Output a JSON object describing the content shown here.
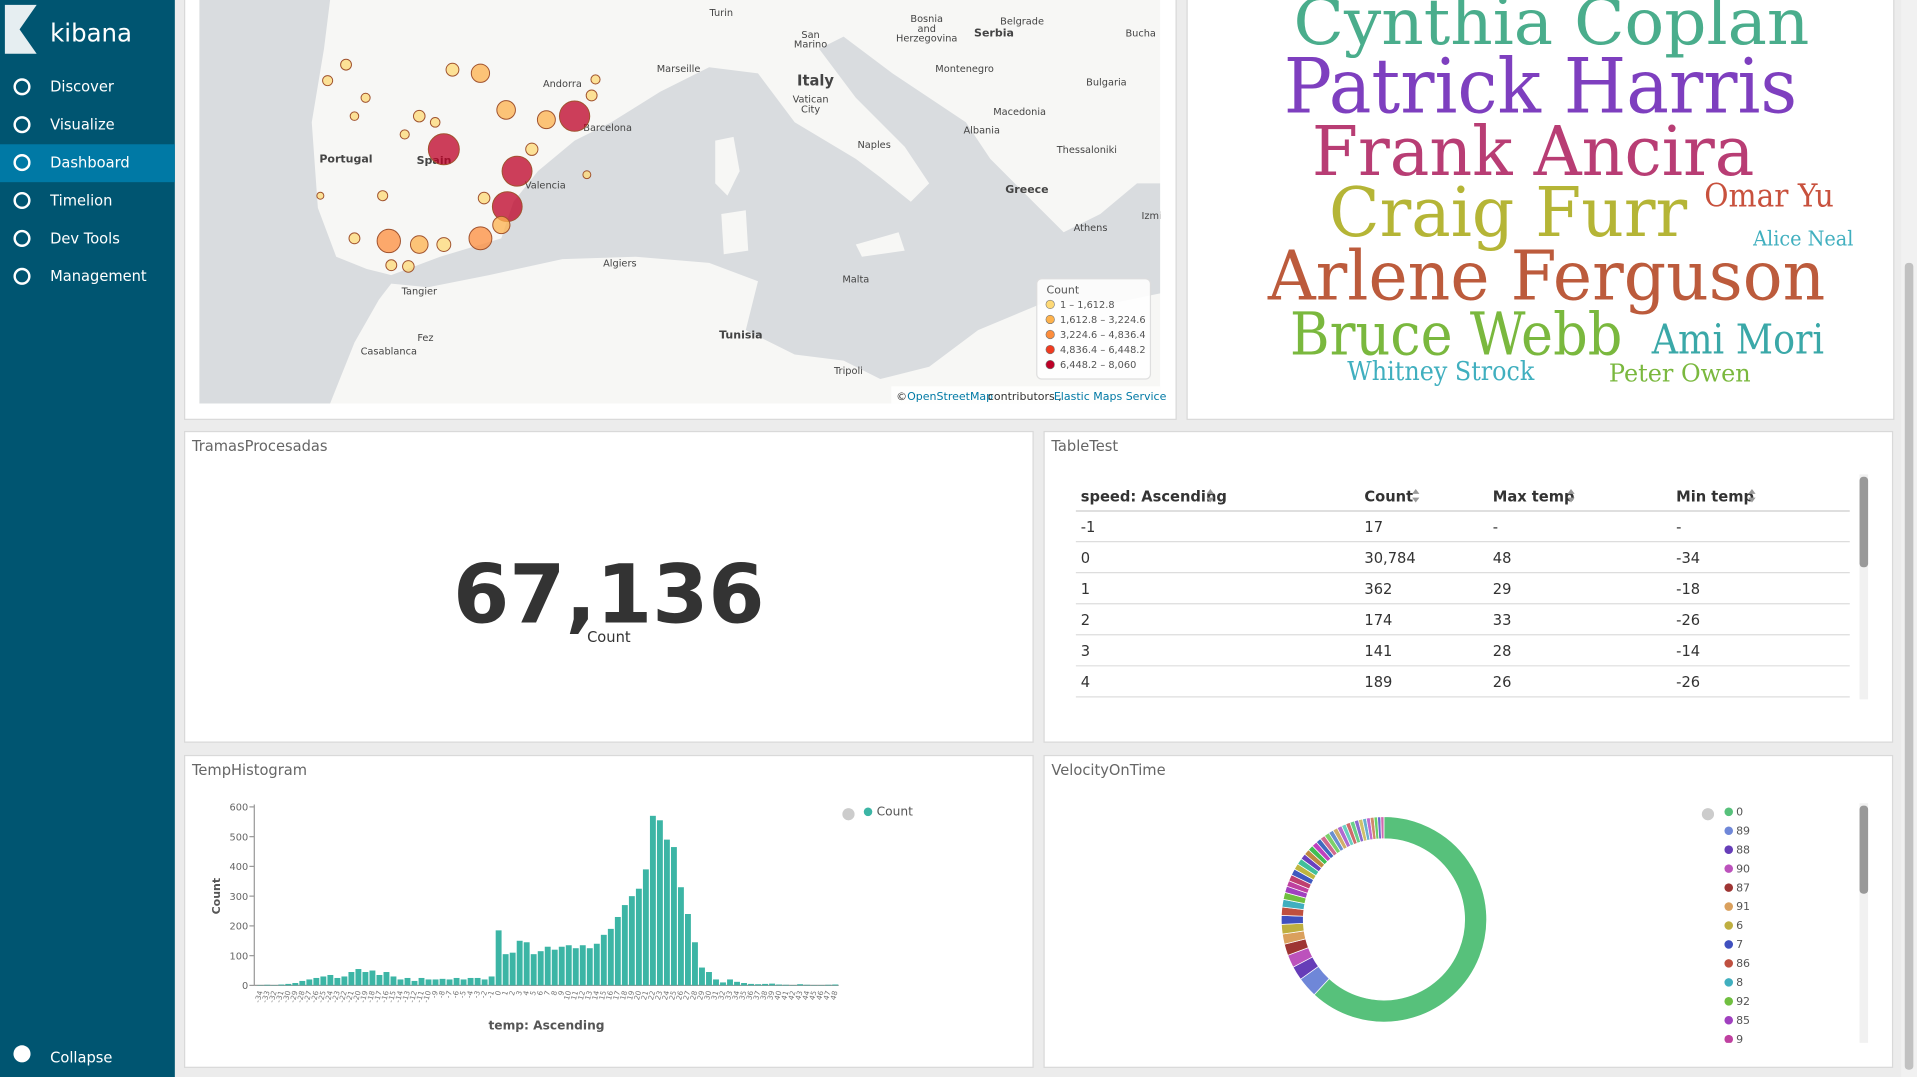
{
  "sidebar": {
    "brand": "kibana",
    "nav": [
      "Discover",
      "Visualize",
      "Dashboard",
      "Timelion",
      "Dev Tools",
      "Management"
    ],
    "collapse": "Collapse"
  },
  "map": {
    "labels": [
      "Turin",
      "Bosnia",
      "and",
      "Herzegovina",
      "Belgrade",
      "Serbia",
      "Bucha",
      "San",
      "Marino",
      "Andorra",
      "Marseille",
      "Italy",
      "Vatican",
      "City",
      "Montenegro",
      "Bulgaria",
      "Macedonia",
      "Portugal",
      "Spain",
      "Barcelona",
      "Naples",
      "Albania",
      "Thessaloniki",
      "Valencia",
      "Greece",
      "Athens",
      "Izmi",
      "Algiers",
      "Malta",
      "Tangier",
      "Fez",
      "Casablanca",
      "Tunisia",
      "Tripoli"
    ],
    "points": [
      {
        "lon": 1.02,
        "lat": 41.66,
        "count": 7200
      },
      {
        "lon": -4.73,
        "lat": 40.54,
        "count": 7600
      },
      {
        "lon": -1.51,
        "lat": 39.8,
        "count": 7000
      },
      {
        "lon": -1.94,
        "lat": 38.6,
        "count": 6900
      },
      {
        "lon": -7.15,
        "lat": 37.44,
        "count": 3800
      },
      {
        "lon": -3.12,
        "lat": 37.53,
        "count": 3600
      },
      {
        "lon": -3.12,
        "lat": 43.11,
        "count": 2000
      },
      {
        "lon": -1.99,
        "lat": 41.87,
        "count": 2100
      },
      {
        "lon": -0.22,
        "lat": 41.54,
        "count": 1900
      },
      {
        "lon": -5.81,
        "lat": 37.32,
        "count": 1800
      },
      {
        "lon": -2.2,
        "lat": 37.98,
        "count": 1700
      },
      {
        "lon": -4.73,
        "lat": 37.32,
        "count": 900
      },
      {
        "lon": -0.86,
        "lat": 40.54,
        "count": 600
      },
      {
        "lon": -4.35,
        "lat": 43.23,
        "count": 700
      },
      {
        "lon": -9.03,
        "lat": 43.4,
        "count": 400
      },
      {
        "lon": -9.84,
        "lat": 42.86,
        "count": 300
      },
      {
        "lon": -5.81,
        "lat": 41.66,
        "count": 500
      },
      {
        "lon": -6.45,
        "lat": 41.04,
        "count": 200
      },
      {
        "lon": -7.42,
        "lat": 38.97,
        "count": 300
      },
      {
        "lon": -8.66,
        "lat": 37.53,
        "count": 400
      },
      {
        "lon": -2.96,
        "lat": 38.89,
        "count": 500
      },
      {
        "lon": -7.04,
        "lat": 36.62,
        "count": 400
      },
      {
        "lon": -6.29,
        "lat": 36.58,
        "count": 500
      },
      {
        "lon": 1.77,
        "lat": 42.36,
        "count": 400
      },
      {
        "lon": 1.94,
        "lat": 42.9,
        "count": 200
      },
      {
        "lon": 1.56,
        "lat": 39.68,
        "count": 100
      },
      {
        "lon": -8.66,
        "lat": 41.66,
        "count": 150
      },
      {
        "lon": -10.16,
        "lat": 38.97,
        "count": 50
      },
      {
        "lon": -8.17,
        "lat": 42.28,
        "count": 200
      },
      {
        "lon": -5.11,
        "lat": 41.45,
        "count": 250
      }
    ],
    "legend": {
      "title": "Count",
      "items": [
        {
          "from": 1,
          "to": 1612.8,
          "label": "1 – 1,612.8",
          "color": "#fed976"
        },
        {
          "from": 1612.8,
          "to": 3224.6,
          "label": "1,612.8 – 3,224.6",
          "color": "#feb24c"
        },
        {
          "from": 3224.6,
          "to": 4836.4,
          "label": "3,224.6 – 4,836.4",
          "color": "#fd8d3c"
        },
        {
          "from": 4836.4,
          "to": 6448.2,
          "label": "4,836.4 – 6,448.2",
          "color": "#f03b20"
        },
        {
          "from": 6448.2,
          "to": 8060,
          "label": "6,448.2 – 8,060",
          "color": "#bd0026"
        }
      ]
    },
    "attribution": {
      "prefix": "©",
      "osm": "OpenStreetMap",
      "contributors": "contributors ,",
      "ems": "Elastic Maps Service"
    }
  },
  "tag_cloud": {
    "words": [
      {
        "text": "Cynthia Coplan",
        "color": "#4aad8c"
      },
      {
        "text": "Patrick Harris",
        "color": "#7e3fbf"
      },
      {
        "text": "Frank Ancira",
        "color": "#b83d74"
      },
      {
        "text": "Craig Furr",
        "color": "#b5b536"
      },
      {
        "text": "Omar Yu",
        "color": "#c8513d"
      },
      {
        "text": "Alice Neal",
        "color": "#40afbf"
      },
      {
        "text": "Arlene Ferguson",
        "color": "#bc5b3c"
      },
      {
        "text": "Bruce Webb",
        "color": "#7ab83e"
      },
      {
        "text": "Ami Mori",
        "color": "#3aa8a8"
      },
      {
        "text": "Whitney Strock",
        "color": "#40afbf"
      },
      {
        "text": "Peter Owen",
        "color": "#7ab83e"
      }
    ]
  },
  "metric": {
    "title": "TramasProcesadas",
    "value": "67,136",
    "label": "Count"
  },
  "table": {
    "title": "TableTest",
    "headers": [
      "speed: Ascending",
      "Count",
      "Max temp",
      "Min temp"
    ],
    "rows": [
      [
        "-1",
        "17",
        "-",
        "-"
      ],
      [
        "0",
        "30,784",
        "48",
        "-34"
      ],
      [
        "1",
        "362",
        "29",
        "-18"
      ],
      [
        "2",
        "174",
        "33",
        "-26"
      ],
      [
        "3",
        "141",
        "28",
        "-14"
      ],
      [
        "4",
        "189",
        "26",
        "-26"
      ]
    ]
  },
  "chart_data": [
    {
      "type": "bar",
      "title": "TempHistogram",
      "x_label": "temp: Ascending",
      "y_label": "Count",
      "categories": [
        -34,
        -33,
        -32,
        -31,
        -30,
        -29,
        -28,
        -27,
        -26,
        -25,
        -24,
        -23,
        -22,
        -21,
        -20,
        -19,
        -18,
        -17,
        -16,
        -15,
        -14,
        -13,
        -12,
        -11,
        -10,
        -9,
        -8,
        -7,
        -6,
        -5,
        -4,
        -3,
        -2,
        -1,
        0,
        1,
        2,
        3,
        4,
        5,
        6,
        7,
        8,
        9,
        10,
        11,
        12,
        13,
        14,
        15,
        16,
        17,
        18,
        19,
        20,
        21,
        22,
        23,
        24,
        25,
        26,
        27,
        28,
        29,
        30,
        31,
        32,
        33,
        34,
        35,
        36,
        37,
        38,
        39,
        40,
        41,
        42,
        43,
        44,
        45,
        46,
        47,
        48
      ],
      "series": [
        {
          "name": "Count",
          "color": "#3cb5a5",
          "values": [
            1,
            2,
            1,
            3,
            5,
            8,
            15,
            20,
            25,
            30,
            35,
            25,
            30,
            45,
            55,
            45,
            50,
            35,
            45,
            30,
            20,
            25,
            15,
            25,
            20,
            20,
            22,
            20,
            25,
            20,
            25,
            25,
            20,
            30,
            185,
            105,
            110,
            150,
            145,
            105,
            115,
            130,
            120,
            130,
            135,
            125,
            135,
            125,
            140,
            170,
            190,
            230,
            270,
            300,
            325,
            390,
            570,
            555,
            490,
            465,
            330,
            240,
            145,
            60,
            45,
            20,
            10,
            20,
            12,
            8,
            5,
            4,
            5,
            6,
            3,
            2,
            1,
            4,
            2,
            1,
            1,
            2,
            3
          ]
        }
      ],
      "ylim": [
        0,
        600
      ],
      "yticks": [
        0,
        100,
        200,
        300,
        400,
        500,
        600
      ]
    },
    {
      "type": "pie",
      "title": "VelocityOnTime",
      "donut": true,
      "categories": [
        "0",
        "89",
        "88",
        "90",
        "87",
        "91",
        "6",
        "7",
        "86",
        "8",
        "92",
        "85",
        "9",
        null,
        null,
        null,
        null,
        null,
        null,
        null,
        null,
        null,
        null,
        null,
        null,
        null,
        null,
        null,
        null,
        null,
        null,
        null,
        null,
        null,
        null,
        null,
        null,
        null
      ],
      "values": [
        61.7,
        3.2,
        2.2,
        2.0,
        1.8,
        1.6,
        1.5,
        1.4,
        1.3,
        1.2,
        1.1,
        1.0,
        0.9,
        1.0,
        1.0,
        0.95,
        0.95,
        0.9,
        0.9,
        0.85,
        0.85,
        0.8,
        0.8,
        0.8,
        0.75,
        0.75,
        0.75,
        0.7,
        0.7,
        0.7,
        0.65,
        0.65,
        0.6,
        0.6,
        0.6,
        0.55,
        0.5,
        0.5
      ],
      "colors": [
        "#57c17b",
        "#6f87d8",
        "#663db8",
        "#bc52bc",
        "#9e3533",
        "#daa05d",
        "#bfaf40",
        "#4050bf",
        "#bf5040",
        "#40afbf",
        "#70bf40",
        "#a040bf",
        "#bf40a0",
        "#bf4070",
        "#4059bf",
        "#bfb640",
        "#40bf9b",
        "#6a40bf",
        "#bf8a40",
        "#40bf53",
        "#bf40bf",
        "#406abf",
        "#d06a8f",
        "#7bd06a",
        "#6a8fd0",
        "#d0ae6a",
        "#b06ad0",
        "#6ad0c1",
        "#d06a6a",
        "#6ad08a",
        "#8a6ad0",
        "#d0c16a",
        "#6ab0d0",
        "#c16ad0",
        "#d08a6a",
        "#6ad06a",
        "#6a6ad0",
        "#d06ab0"
      ]
    }
  ]
}
